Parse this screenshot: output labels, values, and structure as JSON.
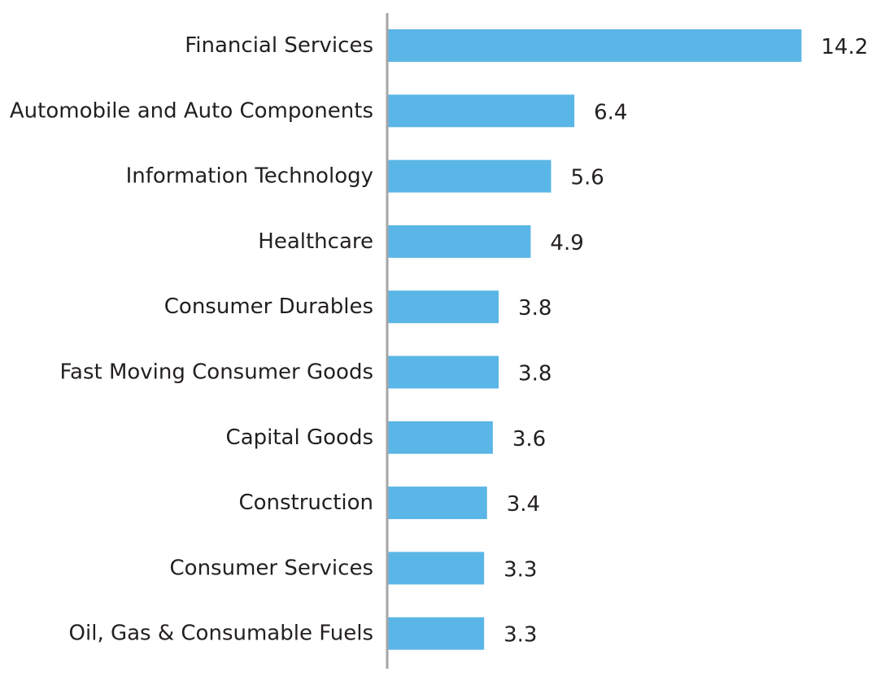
{
  "chart_data": {
    "type": "bar",
    "orientation": "horizontal",
    "categories": [
      "Financial Services",
      "Automobile and Auto Components",
      "Information Technology",
      "Healthcare",
      "Consumer Durables",
      "Fast Moving Consumer Goods",
      "Capital Goods",
      "Construction",
      "Consumer Services",
      "Oil, Gas & Consumable Fuels"
    ],
    "values": [
      14.2,
      6.4,
      5.6,
      4.9,
      3.8,
      3.8,
      3.6,
      3.4,
      3.3,
      3.3
    ],
    "value_labels": [
      "14.2",
      "6.4",
      "5.6",
      "4.9",
      "3.8",
      "3.8",
      "3.6",
      "3.4",
      "3.3",
      "3.3"
    ],
    "title": "",
    "xlabel": "",
    "ylabel": "",
    "grid": false,
    "legend": "none",
    "colors": {
      "bar": "#5ab6e6",
      "axis": "#a6a6a6",
      "text": "#231f20"
    }
  }
}
